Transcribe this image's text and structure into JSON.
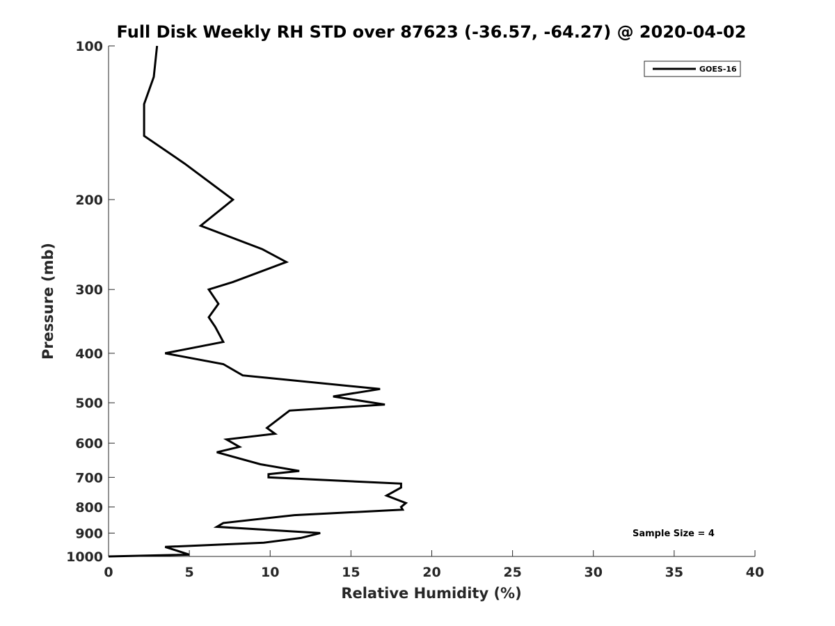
{
  "chart_data": {
    "type": "line",
    "title": "Full Disk Weekly RH STD over 87623 (-36.57, -64.27) @ 2020-04-02",
    "xlabel": "Relative Humidity (%)",
    "ylabel": "Pressure (mb)",
    "xlim": [
      0,
      40
    ],
    "ylim": [
      100,
      1000
    ],
    "y_scale": "log",
    "y_reversed": true,
    "grid": false,
    "x_ticks": [
      0,
      5,
      10,
      15,
      20,
      25,
      30,
      35,
      40
    ],
    "x_tick_labels": [
      "0",
      "5",
      "10",
      "15",
      "20",
      "25",
      "30",
      "35",
      "40"
    ],
    "y_ticks": [
      100,
      200,
      300,
      400,
      500,
      600,
      700,
      800,
      900,
      1000
    ],
    "y_tick_labels": [
      "100",
      "200",
      "300",
      "400",
      "500",
      "600",
      "700",
      "800",
      "900",
      "1000"
    ],
    "legend": {
      "position": "top-right",
      "entries": [
        "GOES-16"
      ]
    },
    "annotation": "Sample Size = 4",
    "series": [
      {
        "name": "GOES-16",
        "color": "#000000",
        "x": [
          3.0,
          2.8,
          2.2,
          2.2,
          2.2,
          4.7,
          7.7,
          5.7,
          9.5,
          11.0,
          7.7,
          6.2,
          6.8,
          6.2,
          6.6,
          7.1,
          3.5,
          7.1,
          8.3,
          16.8,
          13.9,
          17.1,
          11.2,
          9.8,
          10.3,
          7.3,
          8.1,
          6.7,
          9.4,
          11.8,
          9.9,
          9.9,
          18.1,
          18.1,
          17.2,
          18.4,
          18.1,
          18.2,
          11.5,
          7.1,
          6.7,
          13.1,
          11.9,
          9.6,
          3.5,
          5.0,
          0.0
        ],
        "y": [
          100,
          115,
          130,
          140,
          150,
          170,
          200,
          225,
          250,
          265,
          290,
          300,
          320,
          340,
          355,
          380,
          400,
          420,
          442,
          470,
          486,
          504,
          518,
          560,
          575,
          590,
          610,
          625,
          660,
          680,
          690,
          700,
          720,
          733,
          760,
          786,
          800,
          810,
          830,
          860,
          875,
          900,
          920,
          940,
          958,
          992,
          1000
        ]
      }
    ]
  }
}
